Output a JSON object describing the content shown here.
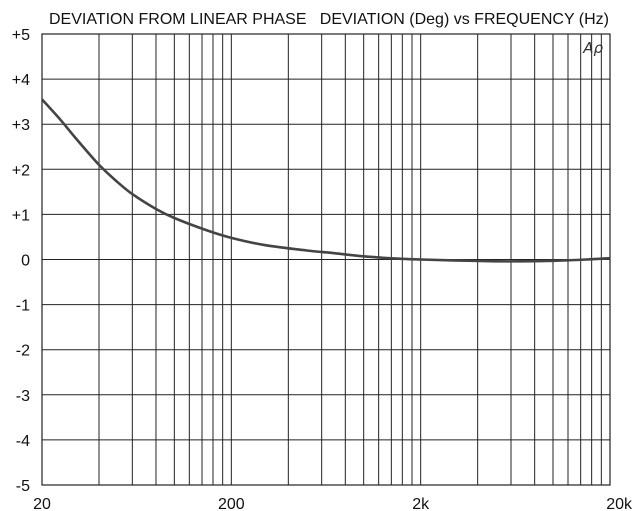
{
  "chart_data": {
    "type": "line",
    "title_left": "DEVIATION FROM LINEAR PHASE",
    "title_right": "DEVIATION (Deg) vs FREQUENCY (Hz)",
    "logo": "Aρ",
    "x_scale": "log",
    "xlim": [
      20,
      20000
    ],
    "ylim": [
      -5,
      5
    ],
    "grid": true,
    "x_tick_labels": [
      {
        "value": 20,
        "label": "20"
      },
      {
        "value": 200,
        "label": "200"
      },
      {
        "value": 2000,
        "label": "2k"
      },
      {
        "value": 20000,
        "label": "20k"
      }
    ],
    "y_tick_labels": [
      {
        "value": 5,
        "label": "+5"
      },
      {
        "value": 4,
        "label": "+4"
      },
      {
        "value": 3,
        "label": "+3"
      },
      {
        "value": 2,
        "label": "+2"
      },
      {
        "value": 1,
        "label": "+1"
      },
      {
        "value": 0,
        "label": "0"
      },
      {
        "value": -1,
        "label": "-1"
      },
      {
        "value": -2,
        "label": "-2"
      },
      {
        "value": -3,
        "label": "-3"
      },
      {
        "value": -4,
        "label": "-4"
      },
      {
        "value": -5,
        "label": "-5"
      }
    ],
    "series": [
      {
        "color": "#444444",
        "x": [
          20,
          25,
          30,
          40,
          50,
          60,
          80,
          100,
          150,
          200,
          300,
          500,
          700,
          1000,
          1500,
          2000,
          3000,
          5000,
          7000,
          10000,
          15000,
          20000
        ],
        "y": [
          3.55,
          3.1,
          2.7,
          2.1,
          1.72,
          1.45,
          1.12,
          0.92,
          0.64,
          0.48,
          0.32,
          0.2,
          0.14,
          0.07,
          0.02,
          0.0,
          -0.02,
          -0.04,
          -0.04,
          -0.03,
          0.0,
          0.03
        ]
      }
    ]
  }
}
